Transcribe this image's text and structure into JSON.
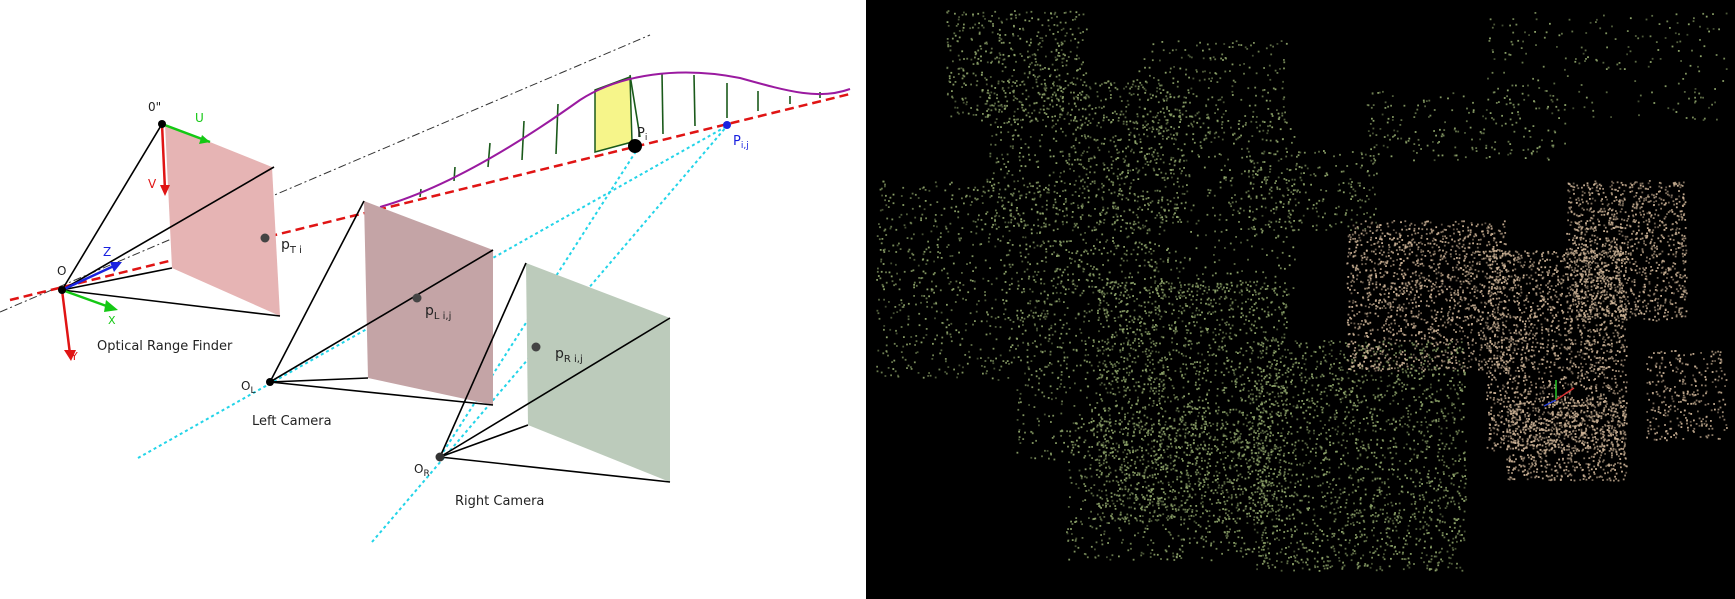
{
  "diagram": {
    "labels": {
      "origin_o2": "0\"",
      "origin_o": "O",
      "axis_u": "U",
      "axis_v": "V",
      "axis_z": "Z",
      "axis_x": "X",
      "axis_y": "Y",
      "point_pt_main": "p",
      "point_pt_sub": "T  i",
      "point_pl_main": "p",
      "point_pl_sub": "L i,j",
      "point_pr_main": "p",
      "point_pr_sub": "R  i,j",
      "point_pi_main": "P",
      "point_pi_sub": "i",
      "point_pij_main": "P",
      "point_pij_sub": "i,j",
      "origin_ol_main": "O",
      "origin_ol_sub": "L",
      "origin_or_main": "O",
      "origin_or_sub": "R",
      "caption_rangefinder": "Optical Range Finder",
      "caption_left_camera": "Left Camera",
      "caption_right_camera": "Right Camera"
    },
    "colors": {
      "laser_line": "#e01414",
      "camera_ray": "#22d4e8",
      "surface_curve": "#9a1aa0",
      "profile_hatch": "#1a5a1a",
      "highlight_cell": "#f6f58a",
      "rangefinder_plane": "#e6b4b4",
      "left_plane": "#c4a4a6",
      "right_plane": "#bccbbb",
      "pointcloud_bg": "#000000",
      "pointcloud_green": "#8ea46a",
      "pointcloud_tan": "#cdb396"
    }
  }
}
